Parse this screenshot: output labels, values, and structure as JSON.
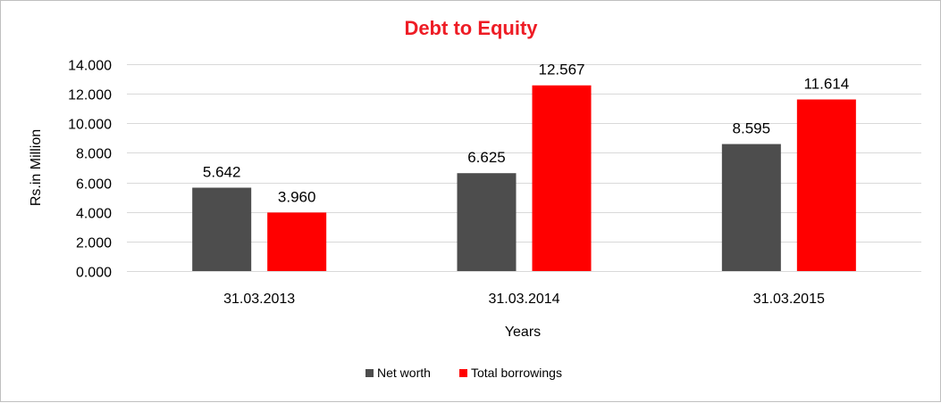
{
  "chart_data": {
    "type": "bar",
    "title": "Debt to Equity",
    "xlabel": "Years",
    "ylabel": "Rs.in Million",
    "categories": [
      "31.03.2013",
      "31.03.2014",
      "31.03.2015"
    ],
    "series": [
      {
        "name": "Net worth",
        "values": [
          5.642,
          6.625,
          8.595
        ],
        "labels": [
          "5.642",
          "6.625",
          "8.595"
        ],
        "color": "#4d4d4d"
      },
      {
        "name": "Total borrowings",
        "values": [
          3.96,
          12.567,
          11.614
        ],
        "labels": [
          "3.960",
          "12.567",
          "11.614"
        ],
        "color": "#ff0000"
      }
    ],
    "ylim": [
      0,
      14
    ],
    "yticks": [
      0,
      2,
      4,
      6,
      8,
      10,
      12,
      14
    ],
    "ytick_labels": [
      "0.000",
      "2.000",
      "4.000",
      "6.000",
      "8.000",
      "10.000",
      "12.000",
      "14.000"
    ],
    "grid": true,
    "legend_position": "bottom"
  }
}
